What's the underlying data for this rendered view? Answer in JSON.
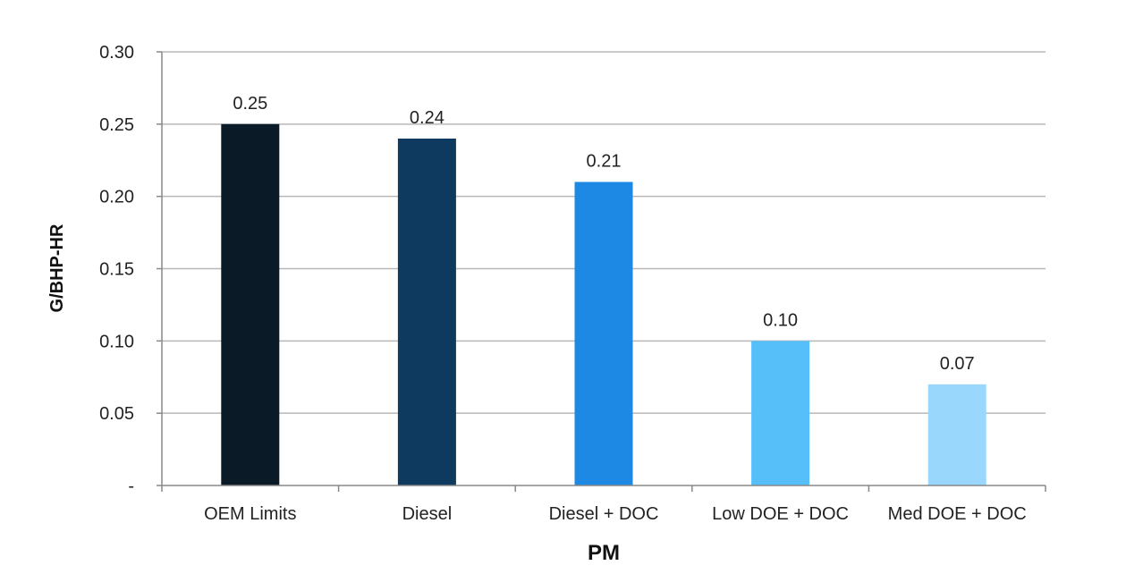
{
  "chart_data": {
    "type": "bar",
    "title": "",
    "xlabel": "PM",
    "ylabel": "G/BHP-HR",
    "categories": [
      "OEM Limits",
      "Diesel",
      "Diesel + DOC",
      "Low DOE + DOC",
      "Med DOE + DOC"
    ],
    "values": [
      0.25,
      0.24,
      0.21,
      0.1,
      0.07
    ],
    "data_labels": [
      "0.25",
      "0.24",
      "0.21",
      "0.10",
      "0.07"
    ],
    "bar_colors": [
      "#0a1a26",
      "#0f3a5f",
      "#1e88e5",
      "#56bff9",
      "#99d8fc"
    ],
    "ylim": [
      0,
      0.3
    ],
    "y_ticks": [
      {
        "value": 0,
        "label": "-"
      },
      {
        "value": 0.05,
        "label": "0.05"
      },
      {
        "value": 0.1,
        "label": "0.10"
      },
      {
        "value": 0.15,
        "label": "0.15"
      },
      {
        "value": 0.2,
        "label": "0.20"
      },
      {
        "value": 0.25,
        "label": "0.25"
      },
      {
        "value": 0.3,
        "label": "0.30"
      }
    ],
    "grid": true,
    "gridline_color": "#b8b8b8",
    "legend": "none"
  }
}
